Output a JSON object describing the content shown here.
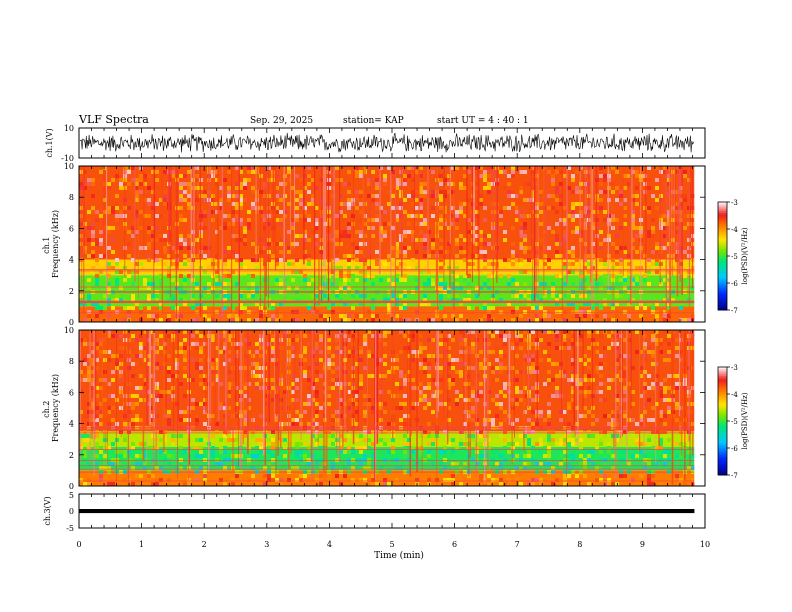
{
  "header": {
    "title": "VLF Spectra",
    "date": "Sep. 29, 2025",
    "station": "station= KAP",
    "start_ut": "start  UT =   4 : 40 : 1"
  },
  "colorbar": {
    "label": "log(PSD)(V²/Hz)",
    "ticks": [
      "-3",
      "-4",
      "-5",
      "-6",
      "-7"
    ],
    "min": -7,
    "max": -3
  },
  "chart_data": [
    {
      "type": "line",
      "name": "ch1-waveform",
      "ylabel": "ch.1(V)",
      "ylim": [
        -10,
        10
      ],
      "y_ticks": [
        "10",
        "-10"
      ],
      "x_range_min": [
        0,
        9.83
      ],
      "description_values": "noise waveform spanning roughly -7 to +7 V"
    },
    {
      "type": "heatmap",
      "name": "ch1-spectrogram",
      "ylabel": "ch.1\nFrequency  (kHz)",
      "ylabel_lines": [
        "ch.1",
        "Frequency  (kHz)"
      ],
      "ylim": [
        0,
        10
      ],
      "y_ticks": [
        "10",
        "8",
        "6",
        "4",
        "2",
        "0"
      ],
      "x_range_min": [
        0,
        9.83
      ],
      "bands": [
        {
          "f_low": 4.0,
          "f_high": 10.0,
          "level": -3.7
        },
        {
          "f_low": 3.0,
          "f_high": 4.0,
          "level": -4.3
        },
        {
          "f_low": 1.0,
          "f_high": 3.0,
          "level": -4.9
        },
        {
          "f_low": 0.0,
          "f_high": 1.0,
          "level": -3.8
        }
      ]
    },
    {
      "type": "heatmap",
      "name": "ch2-spectrogram",
      "ylabel": "ch.2\nFrequency  (kHz)",
      "ylabel_lines": [
        "ch.2",
        "Frequency  (kHz)"
      ],
      "ylim": [
        0,
        10
      ],
      "y_ticks": [
        "10",
        "8",
        "6",
        "4",
        "2",
        "0"
      ],
      "x_range_min": [
        0,
        9.83
      ],
      "bands": [
        {
          "f_low": 3.5,
          "f_high": 10.0,
          "level": -3.7
        },
        {
          "f_low": 2.5,
          "f_high": 3.5,
          "level": -4.6
        },
        {
          "f_low": 1.0,
          "f_high": 2.5,
          "level": -5.1
        },
        {
          "f_low": 0.0,
          "f_high": 1.0,
          "level": -3.9
        }
      ]
    },
    {
      "type": "line",
      "name": "ch3-waveform",
      "ylabel": "ch.3(V)",
      "ylim": [
        -5,
        5
      ],
      "y_ticks": [
        "5",
        "0",
        "-5"
      ],
      "x_range_min": [
        0,
        9.83
      ],
      "band_v": [
        -0.6,
        0.6
      ]
    }
  ],
  "x_axis": {
    "label": "Time  (min)",
    "ticks": [
      "0",
      "1",
      "2",
      "3",
      "4",
      "5",
      "6",
      "7",
      "8",
      "9",
      "10"
    ],
    "min": 0,
    "max": 10
  }
}
